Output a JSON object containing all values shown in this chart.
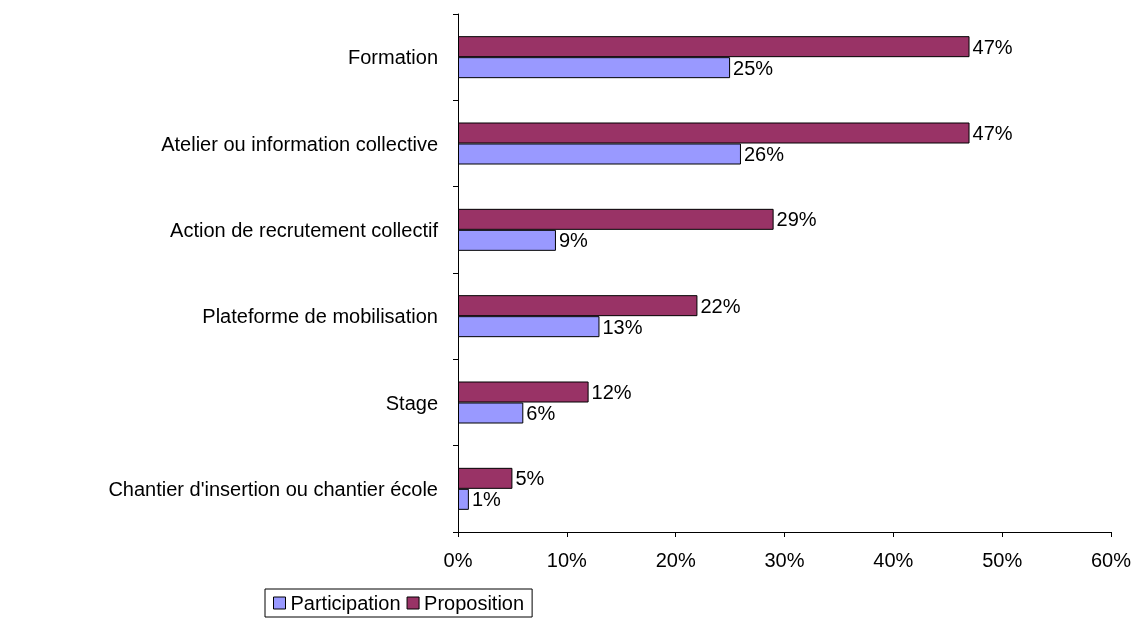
{
  "chart_data": {
    "type": "bar",
    "orientation": "horizontal",
    "categories": [
      "Formation",
      "Atelier ou information collective",
      "Action de recrutement collectif",
      "Plateforme de mobilisation",
      "Stage",
      "Chantier d'insertion ou chantier école"
    ],
    "series": [
      {
        "name": "Participation",
        "color": "#9999ff",
        "values": [
          25,
          26,
          9,
          13,
          6,
          1
        ],
        "value_labels": [
          "25%",
          "26%",
          "9%",
          "13%",
          "6%",
          "1%"
        ]
      },
      {
        "name": "Proposition",
        "color": "#993366",
        "values": [
          47,
          47,
          29,
          22,
          12,
          5
        ],
        "value_labels": [
          "47%",
          "47%",
          "29%",
          "22%",
          "12%",
          "5%"
        ]
      }
    ],
    "xlim": [
      0,
      60
    ],
    "xticks": [
      {
        "value": 0,
        "label": "0%"
      },
      {
        "value": 10,
        "label": "10%"
      },
      {
        "value": 20,
        "label": "20%"
      },
      {
        "value": 30,
        "label": "30%"
      },
      {
        "value": 40,
        "label": "40%"
      },
      {
        "value": 50,
        "label": "50%"
      },
      {
        "value": 60,
        "label": "60%"
      }
    ],
    "grid": false,
    "legend": "bottom"
  }
}
